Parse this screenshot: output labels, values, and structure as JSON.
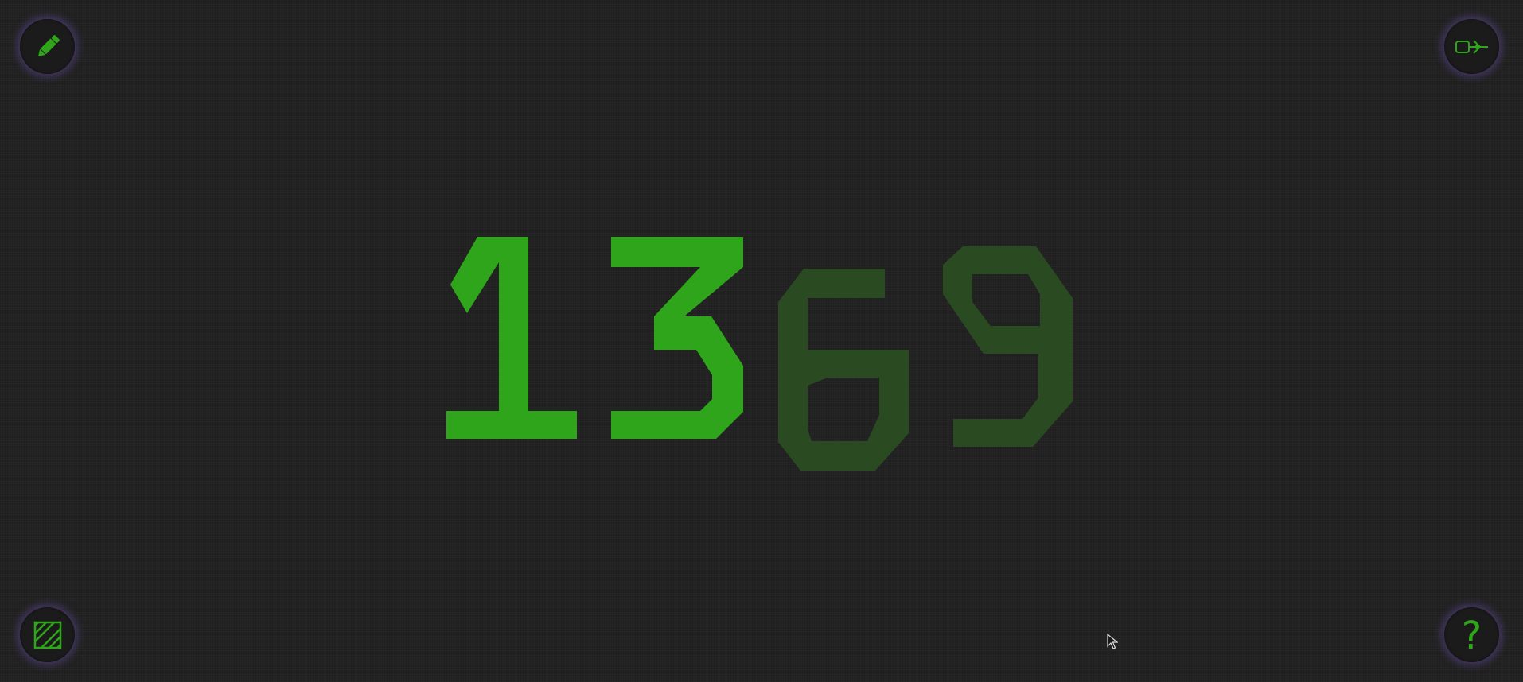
{
  "colors": {
    "accent_green": "#2ea51a",
    "dim_green": "#2a4a22",
    "background": "#222222",
    "button_bg": "#1b1b1b",
    "button_glow": "#785ac8"
  },
  "buttons": {
    "top_left": {
      "icon": "pencil-icon"
    },
    "top_right": {
      "icon": "exit-icon"
    },
    "bottom_left": {
      "icon": "hatched-square-icon"
    },
    "bottom_right": {
      "icon": "question-mark-icon",
      "label": "?"
    }
  },
  "display": {
    "digits": [
      {
        "value": "1",
        "state": "lit"
      },
      {
        "value": "3",
        "state": "lit"
      },
      {
        "value": "6",
        "state": "dim"
      },
      {
        "value": "9",
        "state": "dim"
      }
    ]
  }
}
